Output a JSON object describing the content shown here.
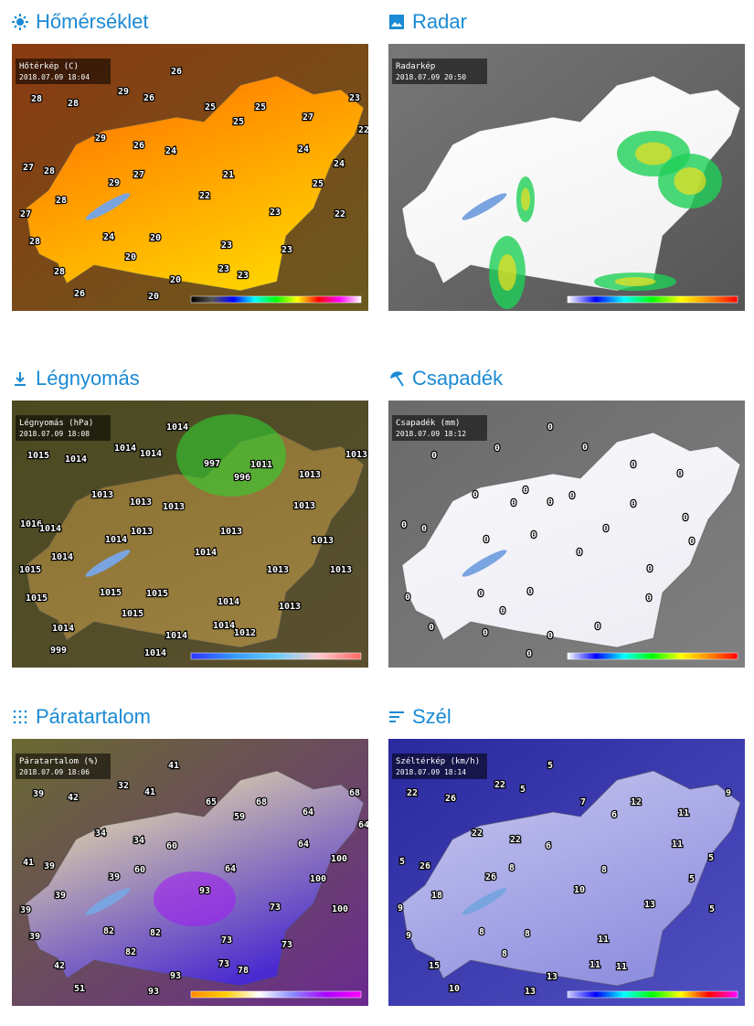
{
  "panels": [
    {
      "title": "Hőmérséklet",
      "map": {
        "label": "Hőtérkép (C)",
        "time": "2018.07.09 18:04",
        "values": [
          26,
          28,
          28,
          29,
          26,
          25,
          25,
          23,
          25,
          27,
          22,
          29,
          26,
          24,
          24,
          24,
          27,
          28,
          29,
          27,
          21,
          25,
          28,
          22,
          27,
          23,
          22,
          24,
          20,
          28,
          23,
          23,
          20,
          28,
          23,
          23,
          20,
          26,
          20
        ]
      }
    },
    {
      "title": "Radar",
      "map": {
        "label": "Radarkép",
        "time": "2018.07.09 20:50",
        "values": []
      }
    },
    {
      "title": "Légnyomás",
      "map": {
        "label": "Légnyomás (hPa)",
        "time": "2018.07.09 18:08",
        "values": [
          1014,
          1015,
          1014,
          1014,
          1014,
          997,
          1011,
          1013,
          996,
          1013,
          1013,
          1013,
          1013,
          1013,
          1016,
          1014,
          1014,
          1013,
          1013,
          1013,
          1014,
          1014,
          1015,
          1013,
          1013,
          1015,
          1015,
          1015,
          1015,
          1014,
          1013,
          1014,
          1014,
          1014,
          1012,
          999,
          1014
        ]
      }
    },
    {
      "title": "Csapadék",
      "map": {
        "label": "Csapadék (mm)",
        "time": "2018.07.09 18:12",
        "values": [
          0,
          0,
          0,
          0,
          0,
          0,
          0,
          0,
          0,
          0,
          0,
          0,
          0,
          0,
          0,
          0,
          0,
          0,
          0,
          0,
          0,
          0,
          0,
          0,
          0,
          0,
          0,
          0,
          0,
          0,
          0
        ]
      }
    },
    {
      "title": "Páratartalom",
      "map": {
        "label": "Páratartalom (%)",
        "time": "2018.07.09 18:06",
        "values": [
          41,
          39,
          42,
          32,
          41,
          65,
          68,
          68,
          59,
          64,
          64,
          34,
          34,
          60,
          64,
          100,
          41,
          39,
          60,
          39,
          64,
          100,
          39,
          93,
          39,
          73,
          100,
          82,
          82,
          39,
          73,
          73,
          82,
          42,
          73,
          78,
          93,
          51,
          93
        ]
      }
    },
    {
      "title": "Szél",
      "map": {
        "label": "Széltérkép (km/h)",
        "time": "2018.07.09 18:14",
        "values": [
          5,
          22,
          5,
          9,
          22,
          26,
          7,
          12,
          6,
          11,
          22,
          22,
          6,
          11,
          5,
          26,
          8,
          5,
          26,
          8,
          5,
          10,
          18,
          13,
          9,
          5,
          8,
          8,
          9,
          11,
          8,
          15,
          11,
          11,
          13,
          10,
          13
        ]
      }
    }
  ]
}
